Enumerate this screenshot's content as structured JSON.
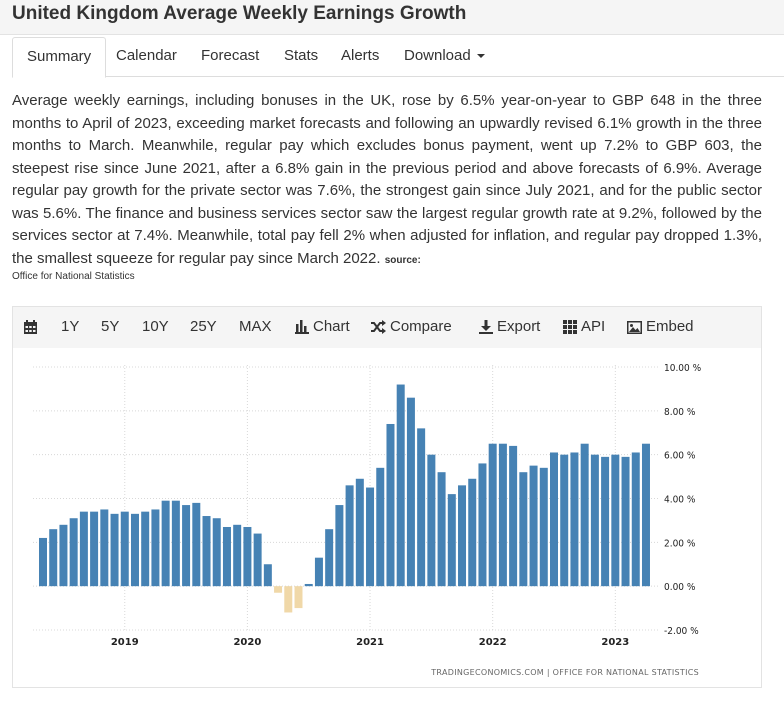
{
  "page": {
    "title": "United Kingdom Average Weekly Earnings Growth"
  },
  "tabs": [
    {
      "label": "Summary",
      "active": true
    },
    {
      "label": "Calendar"
    },
    {
      "label": "Forecast"
    },
    {
      "label": "Stats"
    },
    {
      "label": "Alerts"
    },
    {
      "label": "Download"
    }
  ],
  "description": {
    "text": "Average weekly earnings, including bonuses in the UK, rose by 6.5% year-on-year to GBP 648 in the three months to April of 2023, exceeding market forecasts and following an upwardly revised 6.1% growth in the three months to March. Meanwhile, regular pay which excludes bonus payment, went up 7.2% to GBP 603, the steepest rise since June 2021, after a 6.8% gain in the previous period and above forecasts of 6.9%. Average regular pay growth for the private sector was 7.6%, the strongest gain since July 2021, and for the public sector was 5.6%. The finance and business services sector saw the largest regular growth rate at 9.2%, followed by the services sector at 7.4%. Meanwhile, total pay fell 2% when adjusted for inflation, and regular pay dropped 1.3%, the smallest squeeze for regular pay since March 2022.",
    "source_label": "source:",
    "source_name": "Office for National Statistics"
  },
  "toolbar": {
    "calendar_icon": "calendar-icon",
    "ranges": [
      "1Y",
      "5Y",
      "10Y",
      "25Y",
      "MAX"
    ],
    "chart_label": "Chart",
    "compare_label": "Compare",
    "export_label": "Export",
    "api_label": "API",
    "embed_label": "Embed"
  },
  "chart_data": {
    "type": "bar",
    "title": "",
    "xlabel": "",
    "ylabel": "",
    "ylim": [
      -2,
      10
    ],
    "yticks": [
      "10.00 %",
      "8.00 %",
      "6.00 %",
      "4.00 %",
      "2.00 %",
      "0.00 %",
      "-2.00 %"
    ],
    "xticks": [
      "2019",
      "2020",
      "2021",
      "2022",
      "2023"
    ],
    "grid": true,
    "colors": {
      "positive": "#4682b4",
      "negative": "#f0d8a8"
    },
    "credit": "TRADINGECONOMICS.COM  |  OFFICE FOR NATIONAL STATISTICS",
    "categories": [
      "2018-05",
      "2018-06",
      "2018-07",
      "2018-08",
      "2018-09",
      "2018-10",
      "2018-11",
      "2018-12",
      "2019-01",
      "2019-02",
      "2019-03",
      "2019-04",
      "2019-05",
      "2019-06",
      "2019-07",
      "2019-08",
      "2019-09",
      "2019-10",
      "2019-11",
      "2019-12",
      "2020-01",
      "2020-02",
      "2020-03",
      "2020-04",
      "2020-05",
      "2020-06",
      "2020-07",
      "2020-08",
      "2020-09",
      "2020-10",
      "2020-11",
      "2020-12",
      "2021-01",
      "2021-02",
      "2021-03",
      "2021-04",
      "2021-05",
      "2021-06",
      "2021-07",
      "2021-08",
      "2021-09",
      "2021-10",
      "2021-11",
      "2021-12",
      "2022-01",
      "2022-02",
      "2022-03",
      "2022-04",
      "2022-05",
      "2022-06",
      "2022-07",
      "2022-08",
      "2022-09",
      "2022-10",
      "2022-11",
      "2022-12",
      "2023-01",
      "2023-02",
      "2023-03",
      "2023-04"
    ],
    "values": [
      2.2,
      2.6,
      2.8,
      3.1,
      3.4,
      3.4,
      3.5,
      3.3,
      3.4,
      3.3,
      3.4,
      3.5,
      3.9,
      3.9,
      3.7,
      3.8,
      3.2,
      3.1,
      2.7,
      2.8,
      2.7,
      2.4,
      1.0,
      -0.3,
      -1.2,
      -1.0,
      0.1,
      1.3,
      2.6,
      3.7,
      4.6,
      4.9,
      4.5,
      5.4,
      7.4,
      9.2,
      8.6,
      7.2,
      6.0,
      5.2,
      4.2,
      4.6,
      4.9,
      5.6,
      6.5,
      6.5,
      6.4,
      5.2,
      5.5,
      5.4,
      6.1,
      6.0,
      6.1,
      6.5,
      6.0,
      5.9,
      6.0,
      5.9,
      6.1,
      6.5
    ]
  }
}
